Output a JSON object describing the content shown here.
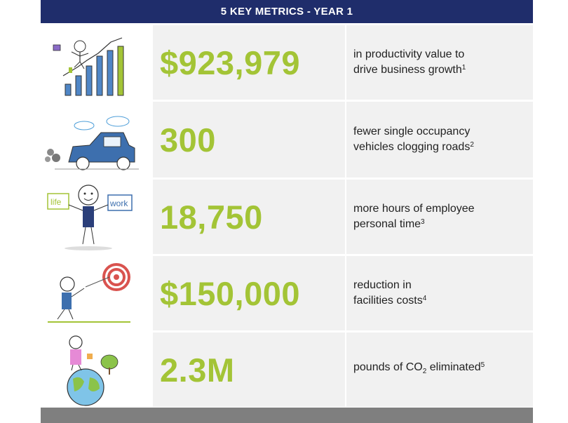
{
  "header": {
    "title": "5 KEY METRICS - YEAR 1"
  },
  "colors": {
    "header_bg": "#1f2d6b",
    "value_green": "#a3c436",
    "cell_bg": "#f1f1f1",
    "footer_bg": "#7f7f7f"
  },
  "metrics": [
    {
      "icon": "growth-chart-icon",
      "value": "$923,979",
      "desc_line1": "in productivity value to",
      "desc_line2": "drive business growth",
      "note": "1"
    },
    {
      "icon": "car-icon",
      "value": "300",
      "desc_line1": "fewer single occupancy",
      "desc_line2": "vehicles clogging roads",
      "note": "2"
    },
    {
      "icon": "life-work-balance-icon",
      "value": "18,750",
      "desc_line1": "more hours of employee",
      "desc_line2": "personal time",
      "note": "3"
    },
    {
      "icon": "target-icon",
      "value": "$150,000",
      "desc_line1": "reduction in",
      "desc_line2": "facilities costs",
      "note": "4"
    },
    {
      "icon": "globe-icon",
      "value": "2.3M",
      "desc_pre": "pounds of CO",
      "desc_sub": "2",
      "desc_post": " eliminated",
      "note": "5"
    }
  ]
}
